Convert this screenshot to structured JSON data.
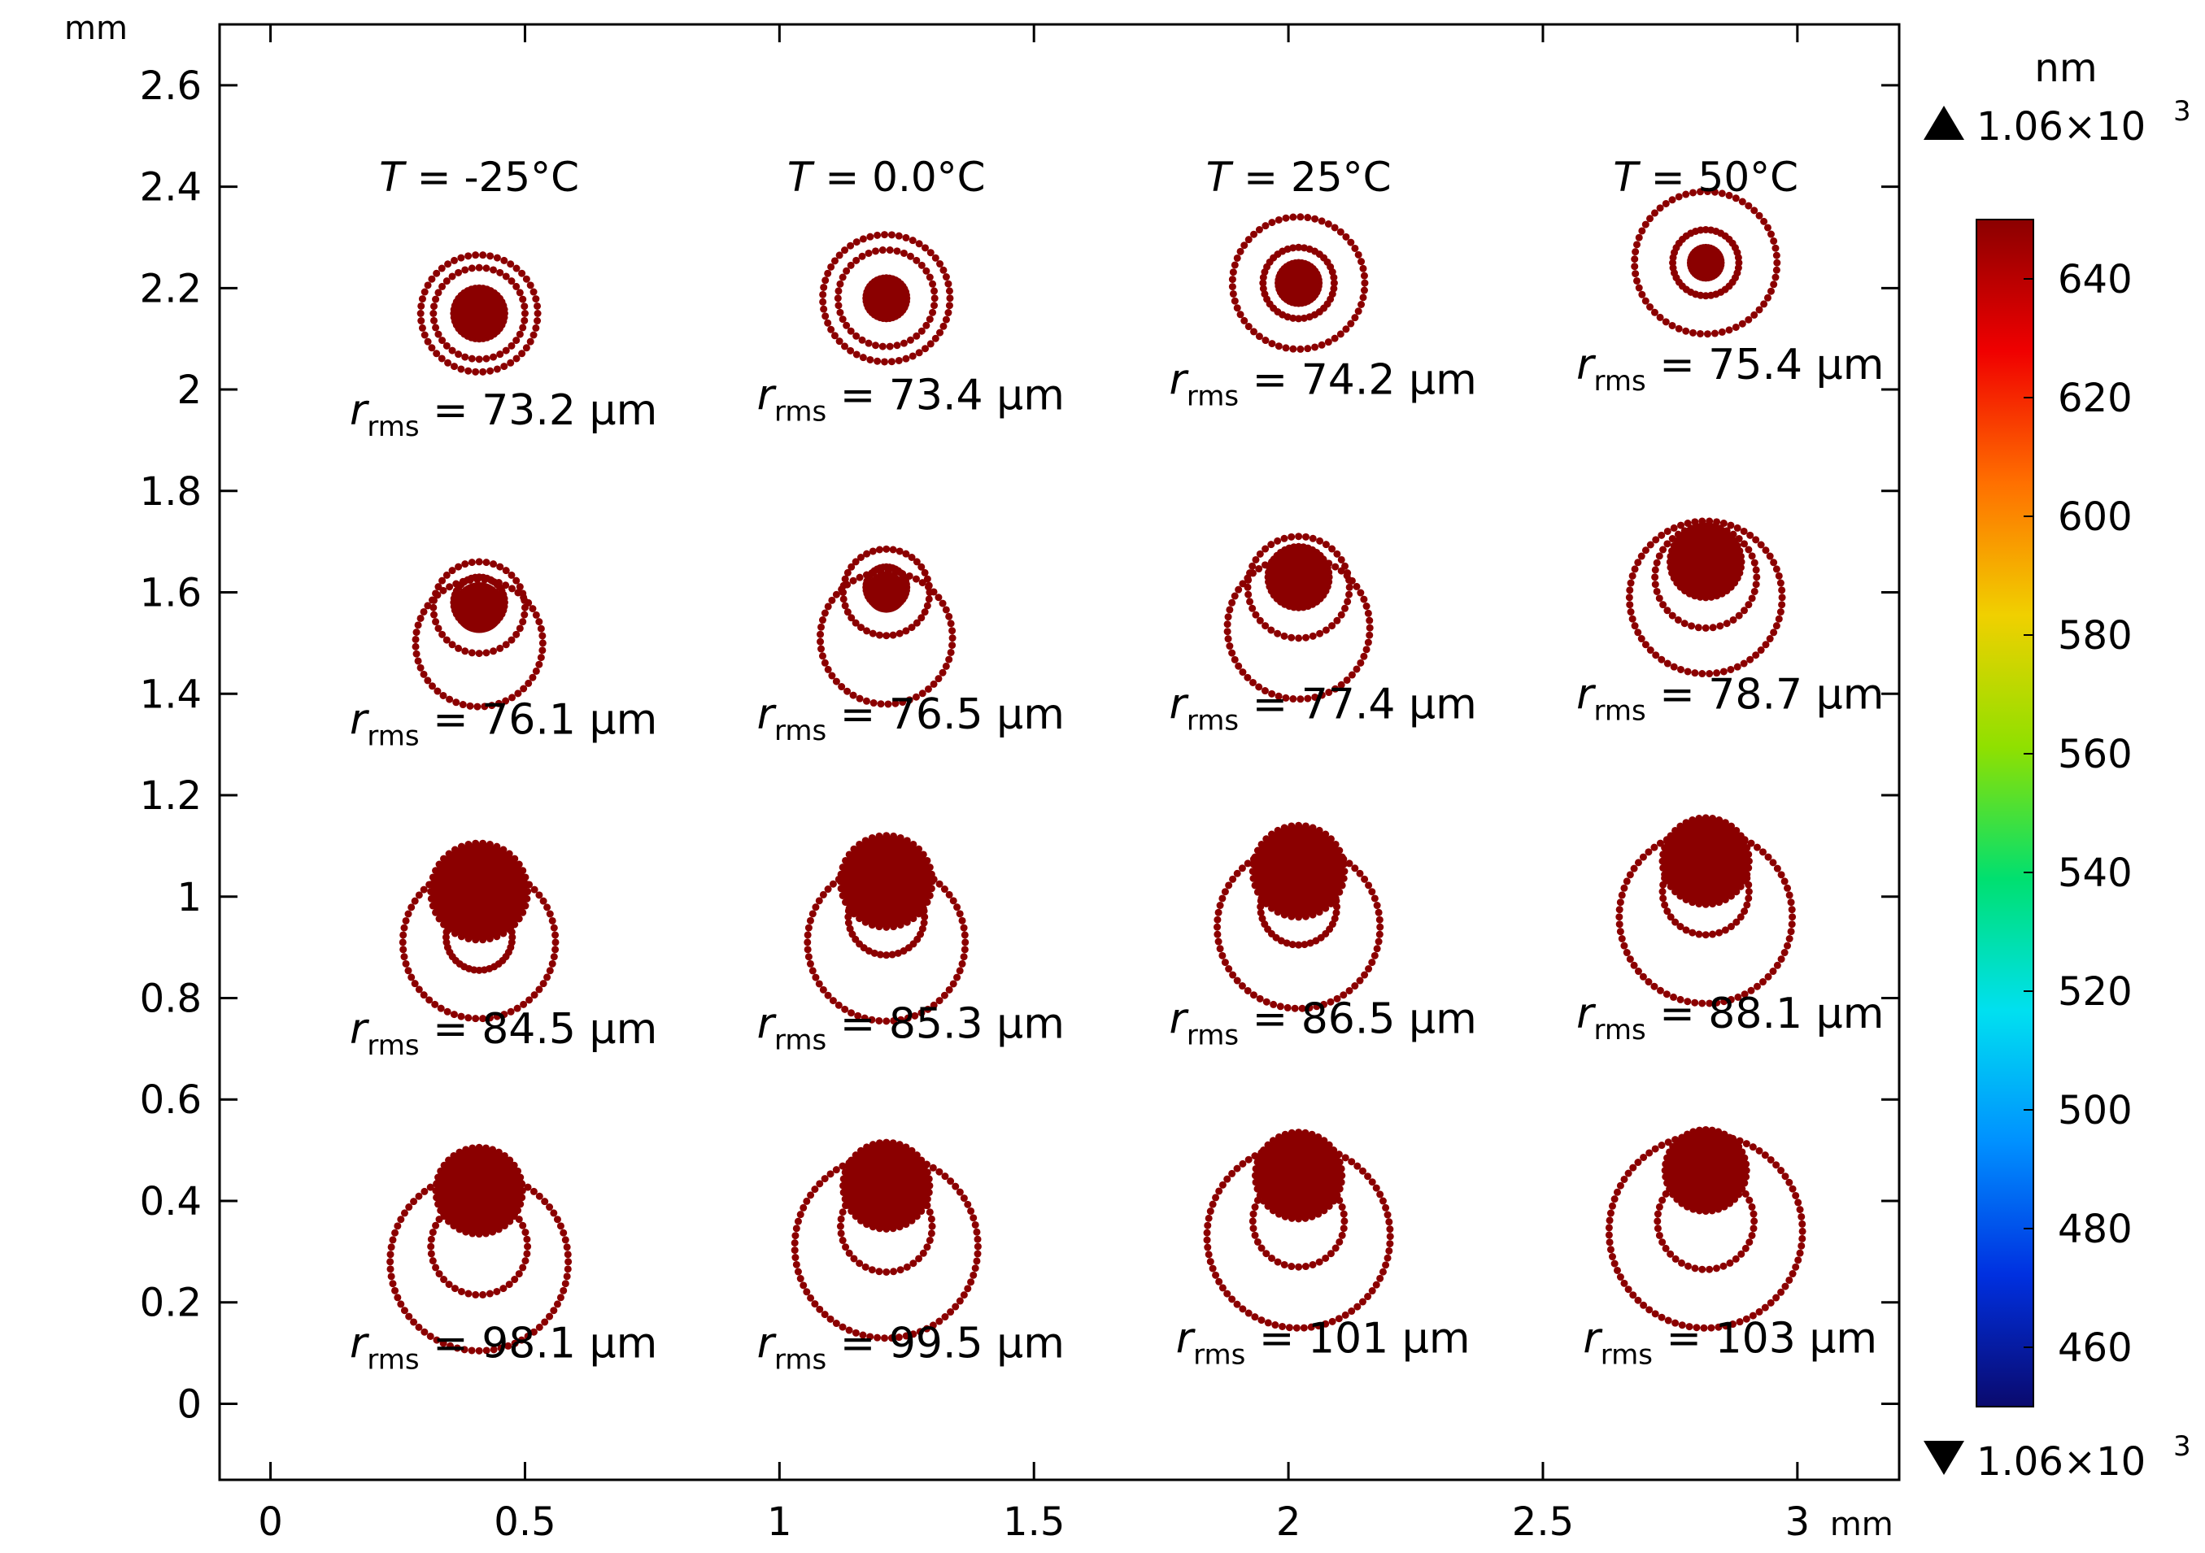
{
  "chart_data": {
    "type": "scatter",
    "title": "",
    "x_axis": {
      "unit": "mm",
      "range": [
        -0.1,
        3.2
      ],
      "ticks": [
        0,
        0.5,
        1,
        1.5,
        2,
        2.5,
        3
      ],
      "tick_labels": [
        "0",
        "0.5",
        "1",
        "1.5",
        "2",
        "2.5",
        "3"
      ]
    },
    "y_axis": {
      "unit": "mm",
      "range": [
        -0.15,
        2.72
      ],
      "ticks": [
        0,
        0.2,
        0.4,
        0.6,
        0.8,
        1,
        1.2,
        1.4,
        1.6,
        1.8,
        2,
        2.2,
        2.4,
        2.6
      ],
      "tick_labels": [
        "0",
        "0.2",
        "0.4",
        "0.6",
        "0.8",
        "1",
        "1.2",
        "1.4",
        "1.6",
        "1.8",
        "2",
        "2.2",
        "2.4",
        "2.6"
      ]
    },
    "grid": false,
    "marker_color": "#8b0000",
    "temperature_labels": [
      {
        "T": "-25",
        "x": 0.41,
        "y": 2.42
      },
      {
        "T": "0.0",
        "x": 1.21,
        "y": 2.42
      },
      {
        "T": "25",
        "x": 2.02,
        "y": 2.42
      },
      {
        "T": "50",
        "x": 2.82,
        "y": 2.42
      }
    ],
    "temp_symbol": "T",
    "temp_unit": "°C",
    "rms_symbol": "r",
    "rms_subscript": "rms",
    "rms_unit": "μm",
    "spots": [
      {
        "cx": 0.41,
        "cy": 2.15,
        "rms": "73.2",
        "label_y": 1.96,
        "rings": [
          {
            "dx": 0,
            "dy": 0,
            "r": 0.115
          },
          {
            "dx": 0,
            "dy": 0,
            "r": 0.09
          },
          {
            "dx": 0,
            "dy": 0,
            "r": 0.05
          }
        ]
      },
      {
        "cx": 1.21,
        "cy": 2.18,
        "rms": "73.4",
        "label_y": 1.99,
        "rings": [
          {
            "dx": 0,
            "dy": 0,
            "r": 0.125
          },
          {
            "dx": 0,
            "dy": 0,
            "r": 0.095
          },
          {
            "dx": 0,
            "dy": 0,
            "r": 0.04
          }
        ]
      },
      {
        "cx": 2.02,
        "cy": 2.21,
        "rms": "74.2",
        "label_y": 2.02,
        "rings": [
          {
            "dx": 0,
            "dy": 0,
            "r": 0.13
          },
          {
            "dx": 0,
            "dy": 0,
            "r": 0.07
          },
          {
            "dx": 0,
            "dy": 0,
            "r": 0.04
          }
        ]
      },
      {
        "cx": 2.82,
        "cy": 2.25,
        "rms": "75.4",
        "label_y": 2.05,
        "rings": [
          {
            "dx": 0,
            "dy": 0,
            "r": 0.14
          },
          {
            "dx": 0,
            "dy": 0,
            "r": 0.065
          },
          {
            "dx": 0,
            "dy": 0,
            "r": 0.03
          }
        ]
      },
      {
        "cx": 0.41,
        "cy": 1.57,
        "rms": "76.1",
        "label_y": 1.35,
        "rings": [
          {
            "dx": 0,
            "dy": -0.07,
            "r": 0.125
          },
          {
            "dx": 0,
            "dy": 0,
            "r": 0.09
          },
          {
            "dx": 0,
            "dy": 0.01,
            "r": 0.05
          }
        ]
      },
      {
        "cx": 1.21,
        "cy": 1.6,
        "rms": "76.5",
        "label_y": 1.36,
        "rings": [
          {
            "dx": 0,
            "dy": -0.09,
            "r": 0.13
          },
          {
            "dx": 0,
            "dy": 0,
            "r": 0.085
          },
          {
            "dx": 0,
            "dy": 0.01,
            "r": 0.04
          }
        ]
      },
      {
        "cx": 2.02,
        "cy": 1.63,
        "rms": "77.4",
        "label_y": 1.38,
        "rings": [
          {
            "dx": 0,
            "dy": -0.1,
            "r": 0.14
          },
          {
            "dx": 0,
            "dy": -0.02,
            "r": 0.1
          },
          {
            "dx": 0,
            "dy": 0,
            "r": 0.06
          }
        ]
      },
      {
        "cx": 2.82,
        "cy": 1.66,
        "rms": "78.7",
        "label_y": 1.4,
        "rings": [
          {
            "dx": 0,
            "dy": -0.07,
            "r": 0.15
          },
          {
            "dx": 0,
            "dy": -0.03,
            "r": 0.1
          },
          {
            "dx": 0,
            "dy": 0,
            "r": 0.07
          }
        ]
      },
      {
        "cx": 0.41,
        "cy": 1.01,
        "rms": "84.5",
        "label_y": 0.74,
        "rings": [
          {
            "dx": 0,
            "dy": -0.1,
            "r": 0.15
          },
          {
            "dx": 0,
            "dy": -0.09,
            "r": 0.065
          },
          {
            "dx": 0,
            "dy": 0,
            "r": 0.095
          }
        ]
      },
      {
        "cx": 1.21,
        "cy": 1.03,
        "rms": "85.3",
        "label_y": 0.75,
        "rings": [
          {
            "dx": 0,
            "dy": -0.12,
            "r": 0.155
          },
          {
            "dx": 0,
            "dy": -0.07,
            "r": 0.075
          },
          {
            "dx": 0,
            "dy": 0,
            "r": 0.09
          }
        ]
      },
      {
        "cx": 2.02,
        "cy": 1.05,
        "rms": "86.5",
        "label_y": 0.76,
        "rings": [
          {
            "dx": 0,
            "dy": -0.11,
            "r": 0.16
          },
          {
            "dx": 0,
            "dy": -0.07,
            "r": 0.075
          },
          {
            "dx": 0,
            "dy": 0,
            "r": 0.09
          }
        ]
      },
      {
        "cx": 2.82,
        "cy": 1.07,
        "rms": "88.1",
        "label_y": 0.77,
        "rings": [
          {
            "dx": 0,
            "dy": -0.11,
            "r": 0.17
          },
          {
            "dx": 0,
            "dy": -0.06,
            "r": 0.085
          },
          {
            "dx": 0,
            "dy": 0,
            "r": 0.085
          }
        ]
      },
      {
        "cx": 0.41,
        "cy": 0.42,
        "rms": "98.1",
        "label_y": 0.12,
        "rings": [
          {
            "dx": 0,
            "dy": -0.14,
            "r": 0.175
          },
          {
            "dx": 0,
            "dy": -0.11,
            "r": 0.095
          },
          {
            "dx": 0,
            "dy": 0,
            "r": 0.085
          }
        ]
      },
      {
        "cx": 1.21,
        "cy": 0.43,
        "rms": "99.5",
        "label_y": 0.12,
        "rings": [
          {
            "dx": 0,
            "dy": -0.12,
            "r": 0.18
          },
          {
            "dx": 0,
            "dy": -0.08,
            "r": 0.09
          },
          {
            "dx": 0,
            "dy": 0,
            "r": 0.085
          }
        ]
      },
      {
        "cx": 2.02,
        "cy": 0.45,
        "rms": "101",
        "label_y": 0.13,
        "rings": [
          {
            "dx": 0,
            "dy": -0.12,
            "r": 0.18
          },
          {
            "dx": 0,
            "dy": -0.09,
            "r": 0.09
          },
          {
            "dx": 0,
            "dy": 0,
            "r": 0.085
          }
        ]
      },
      {
        "cx": 2.82,
        "cy": 0.46,
        "rms": "103",
        "label_y": 0.13,
        "rings": [
          {
            "dx": 0,
            "dy": -0.12,
            "r": 0.19
          },
          {
            "dx": 0,
            "dy": -0.1,
            "r": 0.095
          },
          {
            "dx": 0,
            "dy": 0,
            "r": 0.08
          }
        ]
      }
    ],
    "colorbar": {
      "unit": "nm",
      "range": [
        450,
        650
      ],
      "ticks": [
        460,
        480,
        500,
        520,
        540,
        560,
        580,
        600,
        620,
        640
      ],
      "tick_labels": [
        "460",
        "480",
        "500",
        "520",
        "540",
        "560",
        "580",
        "600",
        "620",
        "640"
      ],
      "max_label": "1.06×10",
      "max_exp": "3",
      "min_label": "1.06×10",
      "min_exp": "3",
      "colors": [
        "#0a0a6e",
        "#0030e0",
        "#0090ff",
        "#00e0f0",
        "#00e070",
        "#90e000",
        "#f0d000",
        "#ff7000",
        "#f00000",
        "#8b0000"
      ]
    }
  }
}
